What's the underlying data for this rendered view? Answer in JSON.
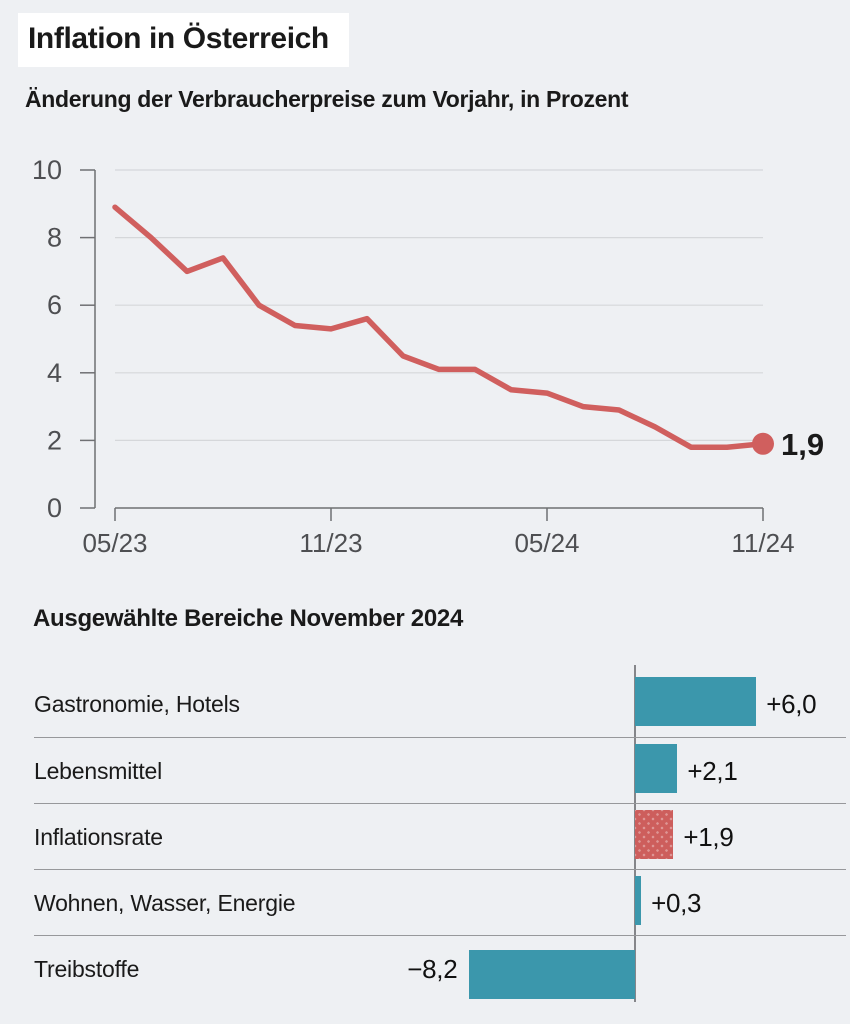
{
  "header": {
    "title": "Inflation in Österreich",
    "subtitle": "Änderung der Verbraucherpreise zum Vorjahr, in Prozent"
  },
  "section": {
    "title": "Ausgewählte Bereiche November 2024"
  },
  "colors": {
    "background": "#eef0f3",
    "title_box_background": "#ffffff",
    "line_red": "#d05f5e",
    "bar_teal": "#3b97ac",
    "bar_red": "#cd5e5c",
    "grid_gray": "#d5d7da",
    "axis_gray": "#6f7073",
    "tick_label_gray": "#4e4f52",
    "separator_gray": "#97989b",
    "text_black": "#1a1a1a"
  },
  "chart_data": [
    {
      "type": "line",
      "title": "Änderung der Verbraucherpreise zum Vorjahr, in Prozent",
      "x": [
        "05/23",
        "06/23",
        "07/23",
        "08/23",
        "09/23",
        "10/23",
        "11/23",
        "12/23",
        "01/24",
        "02/24",
        "03/24",
        "04/24",
        "05/24",
        "06/24",
        "07/24",
        "08/24",
        "09/24",
        "10/24",
        "11/24"
      ],
      "values": [
        8.9,
        8.0,
        7.0,
        7.4,
        6.0,
        5.4,
        5.3,
        5.6,
        4.5,
        4.1,
        4.1,
        3.5,
        3.4,
        3.0,
        2.9,
        2.4,
        1.8,
        1.8,
        1.9
      ],
      "ylim": [
        0,
        10
      ],
      "yticks": [
        0,
        2,
        4,
        6,
        8,
        10
      ],
      "ytick_labels": [
        "0",
        "2",
        "4",
        "6",
        "8",
        "10"
      ],
      "xticks_shown": [
        "05/23",
        "11/23",
        "05/24",
        "11/24"
      ],
      "grid": true,
      "legend": "none",
      "end_marker": true,
      "end_label": "1,9"
    },
    {
      "type": "bar",
      "orientation": "horizontal",
      "title": "Ausgewählte Bereiche November 2024",
      "categories": [
        "Gastronomie, Hotels",
        "Lebensmittel",
        "Inflationsrate",
        "Wohnen, Wasser, Energie",
        "Treibstoffe"
      ],
      "values": [
        6.0,
        2.1,
        1.9,
        0.3,
        -8.2
      ],
      "value_labels": [
        "+6,0",
        "+2,1",
        "+1,9",
        "+0,3",
        "−8,2"
      ],
      "bar_styles": [
        "teal",
        "teal",
        "red",
        "teal",
        "teal"
      ],
      "highlight_category": "Inflationsrate",
      "baseline": 0
    }
  ]
}
